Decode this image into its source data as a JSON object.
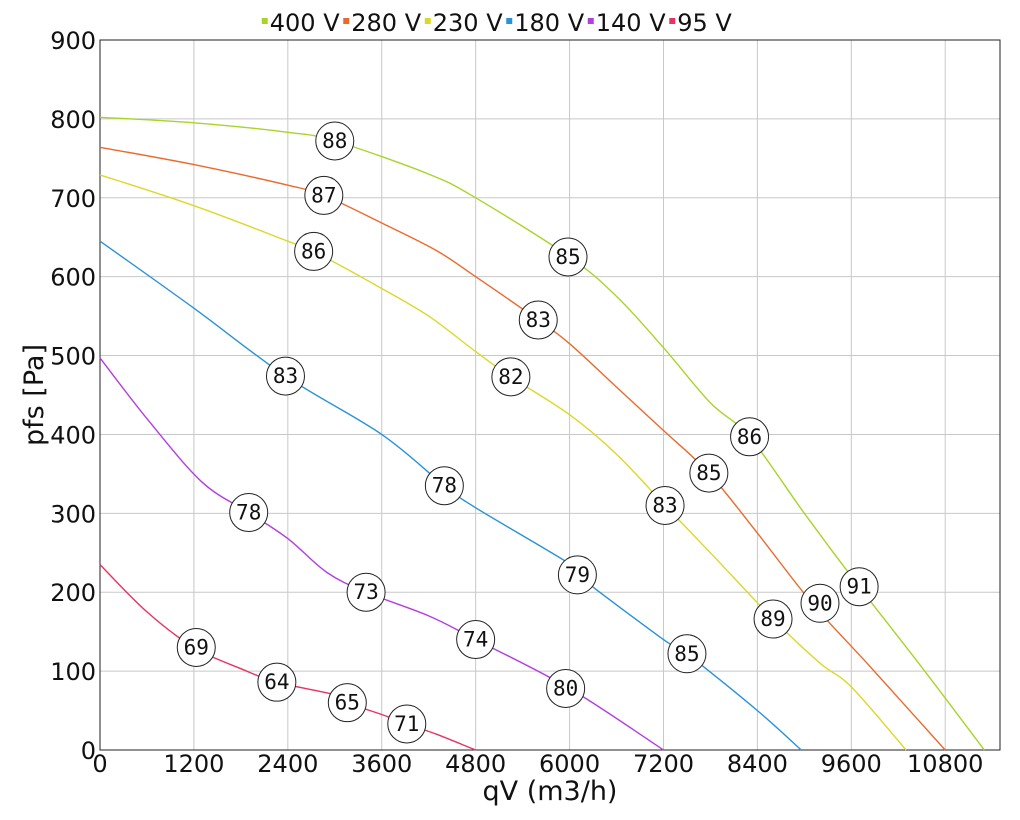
{
  "chart_data": {
    "type": "line",
    "xlabel": "qV (m3/h)",
    "ylabel": "pfs [Pa]",
    "xlim": [
      0,
      11500
    ],
    "ylim": [
      0,
      900
    ],
    "x_ticks": [
      0,
      1200,
      2400,
      3600,
      4800,
      6000,
      7200,
      8400,
      9600,
      10800
    ],
    "y_ticks": [
      0,
      100,
      200,
      300,
      400,
      500,
      600,
      700,
      800,
      900
    ],
    "grid": true,
    "legend_position": "top",
    "series": [
      {
        "name": "400 V",
        "color": "#a8d42a",
        "points": [
          [
            0,
            802
          ],
          [
            1200,
            795
          ],
          [
            2400,
            783
          ],
          [
            3000,
            772
          ],
          [
            4200,
            730
          ],
          [
            4800,
            700
          ],
          [
            6000,
            625
          ],
          [
            6600,
            575
          ],
          [
            7200,
            510
          ],
          [
            7800,
            440
          ],
          [
            8300,
            397
          ],
          [
            9000,
            300
          ],
          [
            9700,
            207
          ],
          [
            10500,
            105
          ],
          [
            11300,
            0
          ]
        ]
      },
      {
        "name": "280 V",
        "color": "#ea6a2c",
        "points": [
          [
            0,
            764
          ],
          [
            1200,
            742
          ],
          [
            2400,
            716
          ],
          [
            2860,
            703
          ],
          [
            3600,
            668
          ],
          [
            4300,
            633
          ],
          [
            4800,
            600
          ],
          [
            5600,
            545
          ],
          [
            6000,
            515
          ],
          [
            6600,
            460
          ],
          [
            7200,
            405
          ],
          [
            7780,
            351
          ],
          [
            8400,
            275
          ],
          [
            9100,
            186
          ],
          [
            9800,
            110
          ],
          [
            10800,
            0
          ]
        ]
      },
      {
        "name": "230 V",
        "color": "#dbd82a",
        "points": [
          [
            0,
            729
          ],
          [
            1200,
            690
          ],
          [
            2400,
            645
          ],
          [
            2730,
            632
          ],
          [
            3600,
            585
          ],
          [
            4200,
            550
          ],
          [
            4800,
            505
          ],
          [
            5250,
            473
          ],
          [
            6000,
            425
          ],
          [
            6600,
            375
          ],
          [
            7220,
            310
          ],
          [
            7800,
            250
          ],
          [
            8600,
            166
          ],
          [
            9200,
            110
          ],
          [
            9600,
            80
          ],
          [
            10300,
            0
          ]
        ]
      },
      {
        "name": "180 V",
        "color": "#2a92d8",
        "points": [
          [
            0,
            645
          ],
          [
            1200,
            560
          ],
          [
            2370,
            474
          ],
          [
            3600,
            400
          ],
          [
            4400,
            335
          ],
          [
            4800,
            307
          ],
          [
            6000,
            236
          ],
          [
            6100,
            222
          ],
          [
            7200,
            140
          ],
          [
            7500,
            122
          ],
          [
            8400,
            50
          ],
          [
            8960,
            0
          ]
        ]
      },
      {
        "name": "140 V",
        "color": "#b23ee0",
        "points": [
          [
            0,
            497
          ],
          [
            600,
            420
          ],
          [
            1300,
            340
          ],
          [
            1900,
            301
          ],
          [
            2400,
            268
          ],
          [
            2900,
            225
          ],
          [
            3400,
            200
          ],
          [
            4200,
            170
          ],
          [
            4800,
            140
          ],
          [
            6000,
            78
          ],
          [
            7200,
            0
          ]
        ]
      },
      {
        "name": "95 V",
        "color": "#e63462",
        "points": [
          [
            0,
            235
          ],
          [
            600,
            175
          ],
          [
            1200,
            130
          ],
          [
            1800,
            103
          ],
          [
            2260,
            86
          ],
          [
            3000,
            70
          ],
          [
            3160,
            60
          ],
          [
            3600,
            45
          ],
          [
            3920,
            33
          ],
          [
            4300,
            20
          ],
          [
            4800,
            0
          ]
        ]
      }
    ],
    "annotations": [
      {
        "label": "88",
        "x": 3000,
        "y": 772
      },
      {
        "label": "87",
        "x": 2860,
        "y": 703
      },
      {
        "label": "86",
        "x": 2730,
        "y": 632
      },
      {
        "label": "85",
        "x": 5980,
        "y": 625
      },
      {
        "label": "83",
        "x": 5600,
        "y": 545
      },
      {
        "label": "82",
        "x": 5250,
        "y": 473
      },
      {
        "label": "83",
        "x": 2370,
        "y": 474
      },
      {
        "label": "86",
        "x": 8300,
        "y": 397
      },
      {
        "label": "85",
        "x": 7780,
        "y": 351
      },
      {
        "label": "83",
        "x": 7220,
        "y": 310
      },
      {
        "label": "78",
        "x": 4400,
        "y": 335
      },
      {
        "label": "78",
        "x": 1900,
        "y": 301
      },
      {
        "label": "79",
        "x": 6100,
        "y": 222
      },
      {
        "label": "91",
        "x": 9700,
        "y": 207
      },
      {
        "label": "90",
        "x": 9200,
        "y": 186
      },
      {
        "label": "89",
        "x": 8600,
        "y": 166
      },
      {
        "label": "73",
        "x": 3400,
        "y": 200
      },
      {
        "label": "74",
        "x": 4800,
        "y": 140
      },
      {
        "label": "85",
        "x": 7500,
        "y": 122
      },
      {
        "label": "80",
        "x": 5950,
        "y": 78
      },
      {
        "label": "69",
        "x": 1230,
        "y": 130
      },
      {
        "label": "64",
        "x": 2260,
        "y": 86
      },
      {
        "label": "65",
        "x": 3160,
        "y": 60
      },
      {
        "label": "71",
        "x": 3920,
        "y": 33
      }
    ]
  }
}
